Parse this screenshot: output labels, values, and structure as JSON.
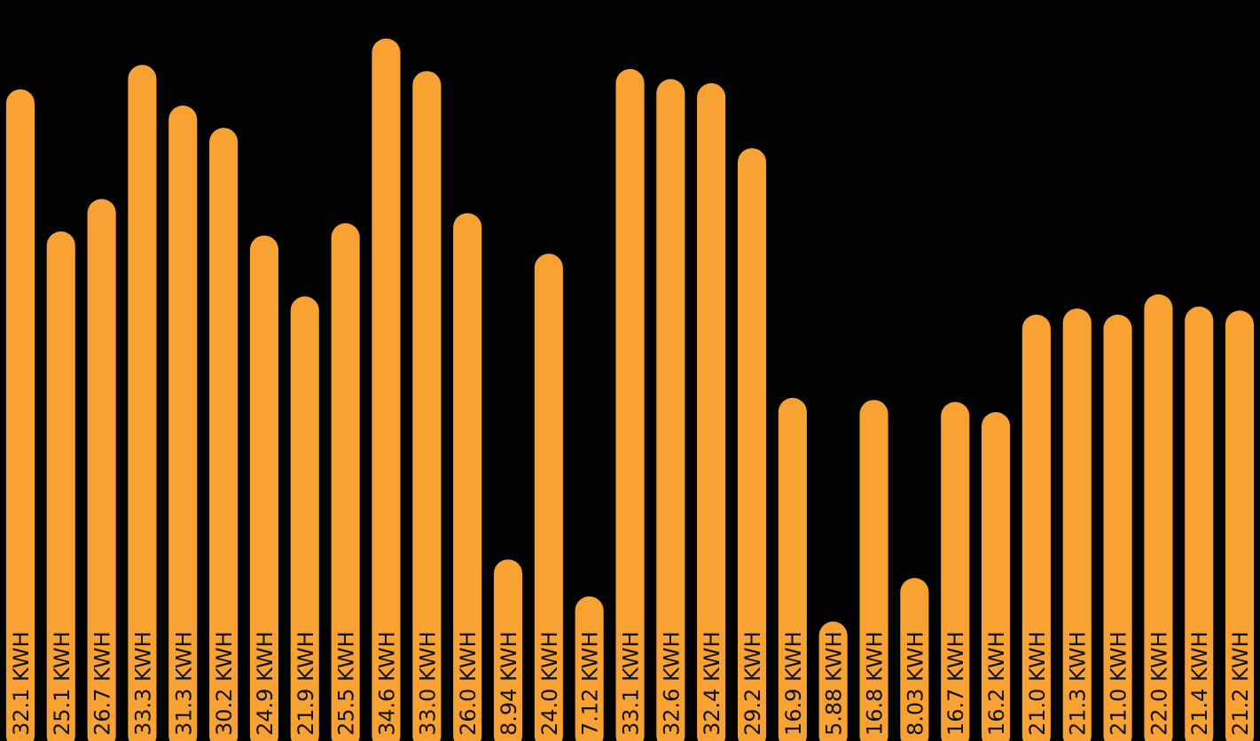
{
  "chart_data": {
    "type": "bar",
    "title": "",
    "xlabel": "",
    "ylabel": "",
    "unit": "KWH",
    "colors": {
      "bar": "#F9A234",
      "background": "#030303",
      "label": "#111111"
    },
    "grid": false,
    "ylim": [
      0,
      36.5
    ],
    "labels": [
      "32.1 KWH",
      "25.1 KWH",
      "26.7 KWH",
      "33.3 KWH",
      "31.3 KWH",
      "30.2 KWH",
      "24.9 KWH",
      "21.9 KWH",
      "25.5 KWH",
      "34.6 KWH",
      "33.0 KWH",
      "26.0 KWH",
      "8.94 KWH",
      "24.0 KWH",
      "7.12 KWH",
      "33.1 KWH",
      "32.6 KWH",
      "32.4 KWH",
      "29.2 KWH",
      "16.9 KWH",
      "5.88 KWH",
      "16.8 KWH",
      "8.03 KWH",
      "16.7 KWH",
      "16.2 KWH",
      "21.0 KWH",
      "21.3 KWH",
      "21.0 KWH",
      "22.0 KWH",
      "21.4 KWH",
      "21.2 KWH"
    ],
    "values": [
      32.1,
      25.1,
      26.7,
      33.3,
      31.3,
      30.2,
      24.9,
      21.9,
      25.5,
      34.6,
      33.0,
      26.0,
      8.94,
      24.0,
      7.12,
      33.1,
      32.6,
      32.4,
      29.2,
      16.9,
      5.88,
      16.8,
      8.03,
      16.7,
      16.2,
      21.0,
      21.3,
      21.0,
      22.0,
      21.4,
      21.2
    ]
  }
}
